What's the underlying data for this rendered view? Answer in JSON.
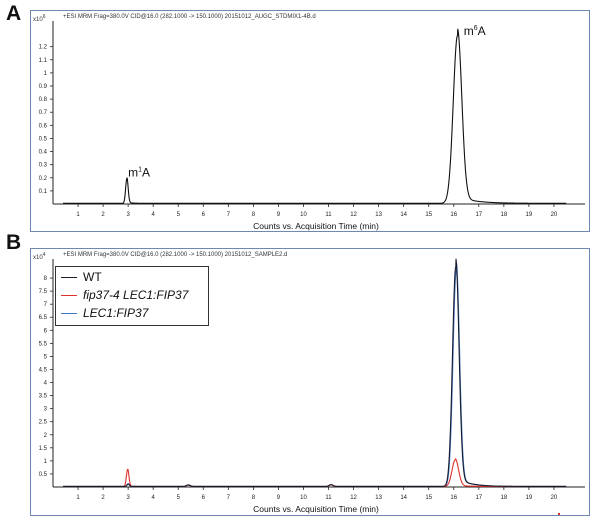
{
  "chart_data": [
    {
      "panel": "A",
      "type": "line",
      "header": "+ESI MRM Frag=380.0V CID@16.0 (282.1000 -> 150.1000) 20151012_AUGC_STDMIX1-4B.d",
      "y_multiplier": "x10",
      "y_exponent": "6",
      "xlabel": "Counts vs. Acquisition Time (min)",
      "xlim": [
        0,
        21
      ],
      "ylim": [
        0,
        1.35
      ],
      "x_ticks": [
        1,
        2,
        3,
        4,
        5,
        6,
        7,
        8,
        9,
        10,
        11,
        12,
        13,
        14,
        15,
        16,
        17,
        18,
        19,
        20
      ],
      "y_ticks": [
        0.1,
        0.2,
        0.3,
        0.4,
        0.5,
        0.6,
        0.7,
        0.8,
        0.9,
        1,
        1.1,
        1.2
      ],
      "series": [
        {
          "color": "#111111",
          "baseline": 0.005,
          "peaks": [
            {
              "x": 2.95,
              "height": 0.19,
              "width": 0.05
            },
            {
              "x": 16.15,
              "height": 1.28,
              "width": 0.17
            }
          ]
        }
      ],
      "annotations": [
        {
          "base": "m",
          "sup": "1",
          "rest": "A",
          "x": 3.0,
          "y": 0.21
        },
        {
          "base": "m",
          "sup": "6",
          "rest": "A",
          "x": 16.4,
          "y": 1.29
        }
      ]
    },
    {
      "panel": "B",
      "type": "line",
      "header": "+ESI MRM Frag=380.0V CID@16.0 (282.1000 -> 150.1000) 20151012_SAMPLE2.d",
      "y_multiplier": "x10",
      "y_exponent": "4",
      "xlabel": "Counts vs. Acquisition Time (min)",
      "xlim": [
        0,
        21
      ],
      "ylim": [
        0,
        8.5
      ],
      "x_ticks": [
        1,
        2,
        3,
        4,
        5,
        6,
        7,
        8,
        9,
        10,
        11,
        12,
        13,
        14,
        15,
        16,
        17,
        18,
        19,
        20
      ],
      "y_ticks": [
        0.5,
        1,
        1.5,
        2,
        2.5,
        3,
        3.5,
        4,
        4.5,
        5,
        5.5,
        6,
        6.5,
        7,
        7.5,
        8
      ],
      "legend_position": "top-left",
      "series": [
        {
          "name": "WT",
          "italic": false,
          "color": "#1a1a2e",
          "baseline": 0.02,
          "peaks": [
            {
              "x": 3.0,
              "height": 0.1,
              "width": 0.05
            },
            {
              "x": 5.4,
              "height": 0.06,
              "width": 0.08
            },
            {
              "x": 11.1,
              "height": 0.07,
              "width": 0.08
            },
            {
              "x": 16.08,
              "height": 8.4,
              "width": 0.13
            }
          ]
        },
        {
          "name": "fip37-4 LEC1:FIP37",
          "italic": true,
          "color": "#e0302a",
          "baseline": 0.02,
          "peaks": [
            {
              "x": 2.98,
              "height": 0.65,
              "width": 0.05
            },
            {
              "x": 5.4,
              "height": 0.05,
              "width": 0.08
            },
            {
              "x": 11.1,
              "height": 0.06,
              "width": 0.08
            },
            {
              "x": 16.06,
              "height": 1.02,
              "width": 0.13
            }
          ]
        },
        {
          "name": "LEC1:FIP37",
          "italic": true,
          "color": "#3a78c2",
          "baseline": 0.02,
          "peaks": [
            {
              "x": 3.0,
              "height": 0.08,
              "width": 0.05
            },
            {
              "x": 5.4,
              "height": 0.05,
              "width": 0.08
            },
            {
              "x": 11.1,
              "height": 0.06,
              "width": 0.08
            },
            {
              "x": 16.1,
              "height": 8.25,
              "width": 0.13
            }
          ]
        }
      ]
    }
  ]
}
